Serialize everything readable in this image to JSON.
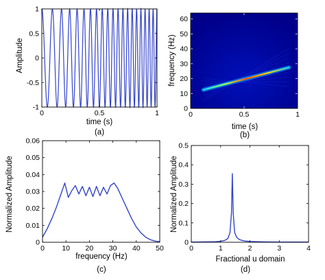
{
  "chart_data": [
    {
      "panel": "(a)",
      "type": "line",
      "title": "",
      "xlabel": "time (s)",
      "ylabel": "Amplitude",
      "xlim": [
        0,
        1
      ],
      "ylim": [
        -1,
        1
      ],
      "xticks": [
        0,
        0.5,
        1
      ],
      "xtick_labels": [
        "0",
        "0.5",
        "1"
      ],
      "yticks": [
        -1,
        -0.5,
        0,
        0.5,
        1
      ],
      "ytick_labels": [
        "-1",
        "-0.5",
        "0",
        "0.5",
        "1"
      ],
      "grid": false,
      "series": [
        {
          "function": "linear chirp cos(2π(f0·t + k·t²/2))",
          "f0_hz": 10,
          "f1_hz": 30,
          "amplitude": 1,
          "color": "#3344cc"
        }
      ]
    },
    {
      "panel": "(b)",
      "type": "heatmap",
      "title": "",
      "xlabel": "time (s)",
      "ylabel": "frequency (Hz)",
      "xlim": [
        0,
        1
      ],
      "ylim": [
        0,
        64
      ],
      "xticks": [
        0,
        0.5,
        1
      ],
      "xtick_labels": [
        "0",
        "0.5",
        "1"
      ],
      "yticks": [
        0,
        10,
        20,
        30,
        40,
        50,
        60
      ],
      "ytick_labels": [
        "0",
        "10",
        "20",
        "30",
        "40",
        "50",
        "60"
      ],
      "ridge": {
        "t_start": 0.12,
        "f_start": 12.5,
        "t_end": 0.92,
        "f_end": 27.5
      },
      "colors": {
        "background": "#00008c",
        "ridge": "#ff6a00"
      }
    },
    {
      "panel": "(c)",
      "type": "line",
      "title": "",
      "xlabel": "frequency (Hz)",
      "ylabel": "Normalized Amplitude",
      "xlim": [
        0,
        50
      ],
      "ylim": [
        0,
        0.06
      ],
      "xticks": [
        0,
        10,
        20,
        30,
        40,
        50
      ],
      "xtick_labels": [
        "0",
        "10",
        "20",
        "30",
        "40",
        "50"
      ],
      "yticks": [
        0,
        0.01,
        0.02,
        0.03,
        0.04,
        0.05,
        0.06
      ],
      "ytick_labels": [
        "0",
        "0.01",
        "0.02",
        "0.03",
        "0.04",
        "0.05",
        "0.06"
      ],
      "grid": false,
      "series": [
        {
          "color": "#3344cc",
          "x": [
            0,
            2,
            4,
            6,
            8,
            9.5,
            11,
            12.5,
            14,
            15.5,
            17,
            18.5,
            20,
            21.5,
            23,
            24.5,
            26,
            27.5,
            29,
            30.5,
            32,
            34,
            36,
            38,
            40,
            42,
            44,
            46,
            48,
            50
          ],
          "y": [
            0.003,
            0.008,
            0.014,
            0.021,
            0.029,
            0.035,
            0.0265,
            0.0305,
            0.0335,
            0.0285,
            0.033,
            0.0275,
            0.0325,
            0.027,
            0.033,
            0.0275,
            0.0325,
            0.0285,
            0.0335,
            0.035,
            0.032,
            0.026,
            0.02,
            0.014,
            0.009,
            0.0055,
            0.003,
            0.0015,
            0.0007,
            0.0003
          ]
        }
      ]
    },
    {
      "panel": "(d)",
      "type": "line",
      "title": "",
      "xlabel": "Fractional u domain",
      "ylabel": "Normalized Amplitude",
      "xlim": [
        0,
        4
      ],
      "ylim": [
        0,
        0.5
      ],
      "xticks": [
        0,
        1,
        2,
        3,
        4
      ],
      "xtick_labels": [
        "0",
        "1",
        "2",
        "3",
        "4"
      ],
      "yticks": [
        0,
        0.1,
        0.2,
        0.3,
        0.4,
        0.5
      ],
      "ytick_labels": [
        "0",
        "0.1",
        "0.2",
        "0.3",
        "0.4",
        "0.5"
      ],
      "grid": false,
      "series": [
        {
          "color": "#3344cc",
          "x": [
            0,
            0.5,
            0.8,
            1.0,
            1.15,
            1.25,
            1.32,
            1.37,
            1.4,
            1.43,
            1.48,
            1.55,
            1.65,
            1.8,
            2.0,
            2.5,
            3.0,
            3.5,
            4.0
          ],
          "y": [
            0.001,
            0.002,
            0.003,
            0.005,
            0.01,
            0.02,
            0.05,
            0.15,
            0.355,
            0.15,
            0.05,
            0.025,
            0.013,
            0.007,
            0.004,
            0.002,
            0.001,
            0.001,
            0.001
          ]
        }
      ]
    }
  ],
  "panel_labels": [
    "(a)",
    "(b)",
    "(c)",
    "(d)"
  ]
}
